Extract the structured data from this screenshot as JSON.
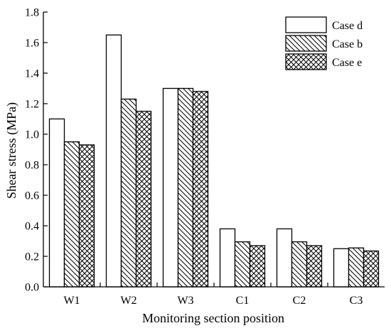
{
  "chart_data": {
    "type": "bar",
    "categories": [
      "W1",
      "W2",
      "W3",
      "C1",
      "C2",
      "C3"
    ],
    "series": [
      {
        "name": "Case d",
        "pattern": "plain",
        "values": [
          1.1,
          1.65,
          1.3,
          0.38,
          0.38,
          0.25
        ]
      },
      {
        "name": "Case b",
        "pattern": "diagonal",
        "values": [
          0.95,
          1.23,
          1.3,
          0.295,
          0.295,
          0.255
        ]
      },
      {
        "name": "Case e",
        "pattern": "crosshatch",
        "values": [
          0.93,
          1.15,
          1.28,
          0.27,
          0.27,
          0.235
        ]
      }
    ],
    "xlabel": "Monitoring section position",
    "ylabel": "Shear stress (MPa)",
    "ylim": [
      0,
      1.8
    ],
    "yticks": [
      "0.0",
      "0.2",
      "0.4",
      "0.6",
      "0.8",
      "1.0",
      "1.2",
      "1.4",
      "1.6",
      "1.8"
    ],
    "grid": false,
    "legend_position": "top-right",
    "colors": {
      "bar_fill": "#ffffff",
      "stroke": "#000000",
      "background": "#ffffff"
    }
  }
}
